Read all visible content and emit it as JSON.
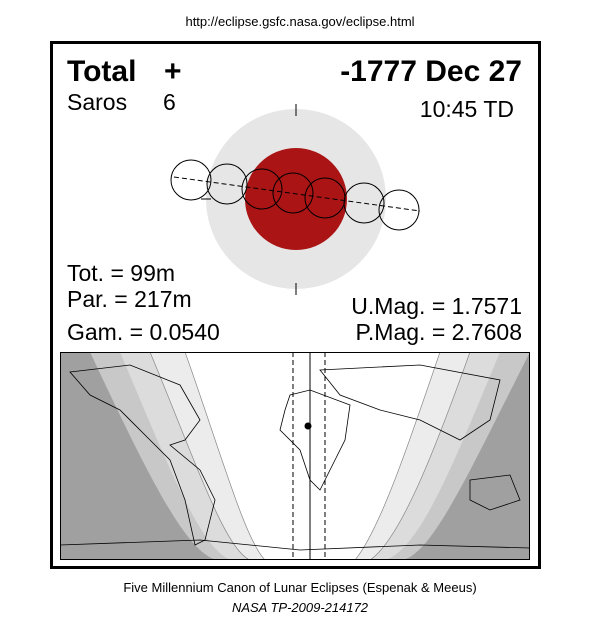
{
  "header": {
    "url": "http://eclipse.gsfc.nasa.gov/eclipse.html"
  },
  "eclipse": {
    "type": "Total",
    "symbol": "+",
    "date": "-1777 Dec 27",
    "saros_label": "Saros",
    "saros_number": "6",
    "time": "10:45 TD"
  },
  "stats": {
    "tot": "Tot. =  99m",
    "par": "Par. = 217m",
    "gam": "Gam. = 0.0540",
    "umag": "U.Mag. = 1.7571",
    "pmag": "P.Mag. = 2.7608"
  },
  "footer": {
    "line1": "Five Millennium Canon of Lunar Eclipses (Espenak & Meeus)",
    "line2": "NASA TP-2009-214172"
  }
}
